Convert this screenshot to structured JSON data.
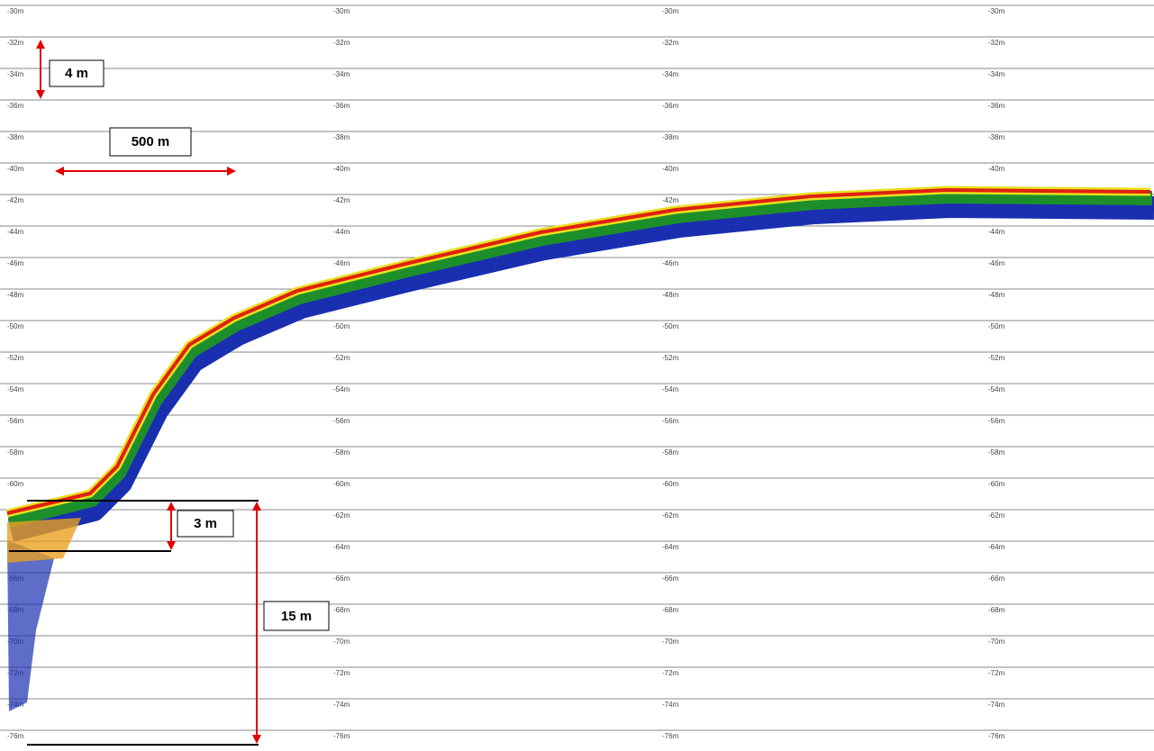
{
  "depth_labels": [
    "-30m",
    "-32m",
    "-34m",
    "-36m",
    "-38m",
    "-40m",
    "-42m",
    "-44m",
    "-46m",
    "-48m",
    "-50m",
    "-52m",
    "-54m",
    "-56m",
    "-58m",
    "-60m",
    "-62m",
    "-64m",
    "-66m",
    "-68m",
    "-70m",
    "-72m",
    "-74m",
    "-76m"
  ],
  "annotations": {
    "vertical_small": "4 m",
    "horizontal": "500 m",
    "layer": "3 m",
    "total": "15 m"
  }
}
